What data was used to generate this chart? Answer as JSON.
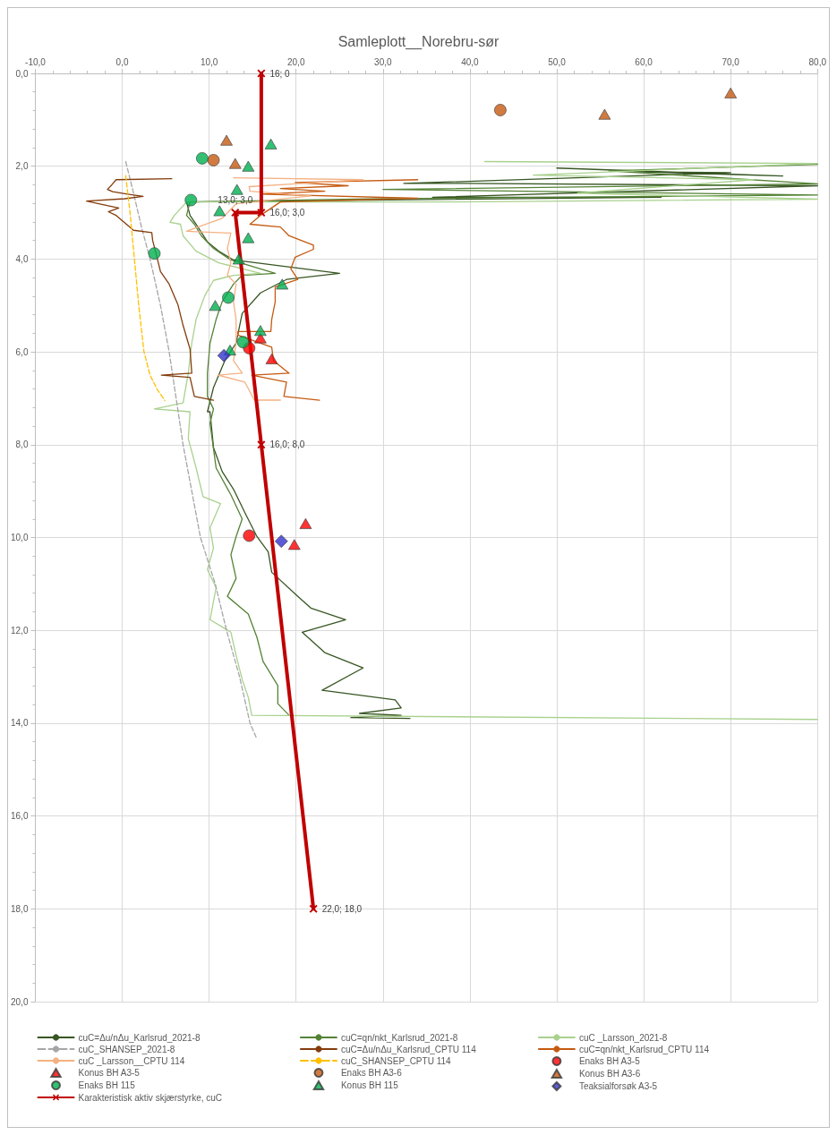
{
  "chart_data": {
    "type": "line",
    "title": "Samleplott__Norebru-sør",
    "xlim": [
      -10,
      80
    ],
    "xticks": [
      {
        "value": -10,
        "label": "-10,0"
      },
      {
        "value": 0,
        "label": "0,0"
      },
      {
        "value": 10,
        "label": "10,0"
      },
      {
        "value": 20,
        "label": "20,0"
      },
      {
        "value": 30,
        "label": "30,0"
      },
      {
        "value": 40,
        "label": "40,0"
      },
      {
        "value": 50,
        "label": "50,0"
      },
      {
        "value": 60,
        "label": "60,0"
      },
      {
        "value": 70,
        "label": "70,0"
      },
      {
        "value": 80,
        "label": "80,0"
      }
    ],
    "ylim": [
      20,
      0
    ],
    "yticks": [
      {
        "value": 0,
        "label": "0,0"
      },
      {
        "value": 2,
        "label": "2,0"
      },
      {
        "value": 4,
        "label": "4,0"
      },
      {
        "value": 6,
        "label": "6,0"
      },
      {
        "value": 8,
        "label": "8,0"
      },
      {
        "value": 10,
        "label": "10,0"
      },
      {
        "value": 12,
        "label": "12,0"
      },
      {
        "value": 14,
        "label": "14,0"
      },
      {
        "value": 16,
        "label": "16,0"
      },
      {
        "value": 18,
        "label": "18,0"
      },
      {
        "value": 20,
        "label": "20,0"
      }
    ],
    "grid": true,
    "legend": "bottom",
    "series": [
      {
        "name": "cuC=Δu/nΔu_Karlsrud_2021-8",
        "color": "#375623",
        "type": "line",
        "marker": "none",
        "line_style": "solid",
        "x": [
          50.0,
          76.0,
          59.0,
          70.0,
          32.4,
          39.4,
          80.0,
          35.7,
          62.0,
          7.4,
          7.8,
          8.5,
          9.8,
          11.1,
          12.8,
          25.0,
          18.9,
          15.9,
          13.8,
          13.1,
          11.8,
          10.5,
          9.8,
          10.1,
          10.5,
          11.5,
          12.8,
          14.1,
          15.5,
          16.8,
          17.2,
          20.2,
          21.7,
          25.7,
          20.7,
          23.3,
          27.7,
          23.0,
          31.4,
          32.1,
          27.3,
          32.1,
          26.3,
          33.1
        ],
        "values": [
          2.04,
          2.21,
          2.12,
          2.14,
          2.37,
          2.37,
          2.42,
          2.67,
          2.67,
          2.77,
          3.06,
          3.25,
          3.63,
          3.83,
          4.02,
          4.31,
          4.44,
          4.73,
          5.17,
          5.81,
          6.19,
          6.77,
          7.29,
          7.29,
          8.06,
          8.58,
          8.96,
          9.46,
          9.98,
          10.31,
          10.75,
          11.27,
          11.52,
          11.77,
          12.04,
          12.48,
          12.81,
          13.29,
          13.5,
          13.67,
          13.79,
          13.83,
          13.88,
          13.9
        ]
      },
      {
        "name": "cuC=qn/nkt_Karlsrud_2021-8",
        "color": "#548235",
        "type": "line",
        "marker": "none",
        "line_style": "solid",
        "x": [
          80.0,
          56.0,
          80.0,
          30.0,
          80.0,
          30.0,
          7.8,
          7.4,
          8.3,
          9.1,
          10.5,
          12.5,
          17.6,
          13.8,
          12.8,
          11.5,
          10.8,
          10.1,
          9.8,
          9.8,
          10.5,
          10.1,
          10.8,
          12.5,
          13.8,
          13.1,
          12.5,
          13.1,
          12.1,
          14.5,
          15.5,
          16.2,
          17.9,
          17.9,
          19.2
        ],
        "values": [
          1.96,
          2.1,
          2.38,
          2.5,
          2.62,
          2.7,
          2.77,
          3.06,
          3.25,
          3.5,
          3.77,
          4.02,
          4.31,
          4.35,
          4.54,
          4.92,
          5.3,
          5.81,
          6.46,
          6.96,
          7.23,
          7.54,
          8.5,
          9.08,
          9.6,
          9.98,
          10.37,
          10.88,
          11.27,
          11.65,
          12.15,
          12.67,
          13.19,
          13.58,
          13.83
        ]
      },
      {
        "name": "cuC _Larsson_2021-8",
        "color": "#a9d18e",
        "type": "line",
        "marker": "none",
        "line_style": "solid",
        "x": [
          41.7,
          80.0,
          47.3,
          72.7,
          52.4,
          80.0,
          37.2,
          7.4,
          6.0,
          5.5,
          6.7,
          7.0,
          8.5,
          11.1,
          15.9,
          12.8,
          10.5,
          9.5,
          8.5,
          8.0,
          7.6,
          7.0,
          3.7,
          7.8,
          7.6,
          8.5,
          9.3,
          11.3,
          10.1,
          10.5,
          9.8,
          10.8,
          10.1,
          12.5,
          13.1,
          13.8,
          14.5,
          14.9,
          80.0
        ],
        "values": [
          1.9,
          1.94,
          2.19,
          2.29,
          2.58,
          2.71,
          2.77,
          2.77,
          3.06,
          3.21,
          3.25,
          3.5,
          3.83,
          4.08,
          4.31,
          4.35,
          4.46,
          4.79,
          5.3,
          5.81,
          6.46,
          7.1,
          7.23,
          7.29,
          7.87,
          8.5,
          9.12,
          9.27,
          9.79,
          10.23,
          10.69,
          11.08,
          11.77,
          12.04,
          12.54,
          13.06,
          13.44,
          13.83,
          13.92
        ]
      },
      {
        "name": "cuC_SHANSEP_2021-8",
        "color": "#a6a6a6",
        "type": "line",
        "marker": "none",
        "line_style": "dashed",
        "x": [
          0.4,
          1.2,
          2.2,
          3.2,
          4.4,
          5.4,
          6.2,
          7.0,
          8.0,
          9.0,
          10.7,
          12.0,
          13.5,
          14.7,
          15.4
        ],
        "values": [
          1.9,
          2.5,
          3.3,
          4.0,
          5.0,
          6.0,
          7.0,
          8.0,
          9.0,
          10.0,
          11.0,
          12.0,
          13.0,
          14.0,
          14.3
        ]
      },
      {
        "name": "cuC=Δu/nΔu_Karlsrud_CPTU 114",
        "color": "#843c0c",
        "type": "line",
        "marker": "none",
        "line_style": "solid",
        "x": [
          5.7,
          -0.7,
          -1.2,
          -1.7,
          -1.1,
          0.6,
          2.4,
          0.3,
          -4.1,
          -2.7,
          -0.4,
          -1.6,
          -0.7,
          1.3,
          3.4,
          3.5,
          3.9,
          4.4,
          5.4,
          6.4,
          7.0,
          7.8,
          8.0,
          4.5,
          7.8,
          8.3,
          10.5
        ],
        "values": [
          2.27,
          2.29,
          2.4,
          2.5,
          2.55,
          2.6,
          2.65,
          2.7,
          2.75,
          2.81,
          2.9,
          2.98,
          3.06,
          3.38,
          3.43,
          3.6,
          3.89,
          4.27,
          4.54,
          4.98,
          5.43,
          5.94,
          6.46,
          6.5,
          6.55,
          6.96,
          7.04
        ]
      },
      {
        "name": "cuC=qn/nkt_Karlsrud_CPTU 114",
        "color": "#c55a11",
        "type": "line",
        "marker": "none",
        "line_style": "solid",
        "x": [
          34.0,
          19.9,
          26.0,
          18.2,
          23.3,
          15.9,
          34.0,
          18.2,
          15.9,
          14.7,
          18.2,
          19.2,
          22.0,
          22.0,
          19.9,
          19.4,
          20.2,
          17.6,
          17.6,
          17.2,
          17.1,
          13.3,
          13.3,
          17.2,
          17.4,
          19.2,
          14.9,
          18.9,
          18.6,
          22.7
        ],
        "values": [
          2.29,
          2.35,
          2.42,
          2.48,
          2.54,
          2.6,
          2.69,
          2.77,
          3.06,
          3.25,
          3.31,
          3.5,
          3.7,
          3.79,
          3.96,
          4.21,
          4.44,
          4.6,
          4.92,
          5.3,
          5.56,
          5.56,
          5.64,
          5.9,
          6.19,
          6.46,
          6.5,
          6.65,
          6.96,
          7.04
        ]
      },
      {
        "name": "cuC _Larsson__CPTU 114",
        "color": "#f4b183",
        "type": "line",
        "marker": "none",
        "line_style": "solid",
        "x": [
          12.8,
          27.7,
          19.9,
          14.6,
          14.7,
          21.7,
          13.1,
          11.5,
          7.4,
          12.5,
          12.1,
          12.5,
          12.1,
          13.1,
          12.8,
          13.1,
          13.1,
          12.8,
          13.8,
          11.0,
          14.1,
          15.2,
          18.2
        ],
        "values": [
          2.25,
          2.29,
          2.38,
          2.44,
          2.54,
          2.64,
          2.81,
          3.12,
          3.4,
          3.44,
          3.77,
          4.08,
          4.35,
          4.54,
          4.92,
          5.3,
          5.81,
          6.19,
          6.46,
          6.5,
          6.65,
          7.04,
          7.04
        ]
      },
      {
        "name": "cuC_SHANSEP_CPTU 114",
        "color": "#ffc000",
        "type": "line",
        "marker": "none",
        "line_style": "dashed",
        "x": [
          0.4,
          0.9,
          1.4,
          1.9,
          2.5,
          3.2,
          4.0,
          4.9
        ],
        "values": [
          2.2,
          3.0,
          4.0,
          5.0,
          6.0,
          6.5,
          6.8,
          7.05
        ]
      },
      {
        "name": "Enaks BH A3-5",
        "color": "#ff0000",
        "type": "scatter",
        "marker": "circle",
        "x": [
          14.6,
          14.6
        ],
        "values": [
          5.92,
          9.96
        ]
      },
      {
        "name": "Konus BH A3-5",
        "color": "#ff0000",
        "type": "scatter",
        "marker": "triangle",
        "x": [
          15.9,
          17.2,
          21.1,
          19.8
        ],
        "values": [
          5.7,
          6.15,
          9.7,
          10.15
        ]
      },
      {
        "name": "Enaks BH A3-6",
        "color": "#c55a11",
        "type": "scatter",
        "marker": "circle",
        "x": [
          43.5,
          10.5
        ],
        "values": [
          0.79,
          1.87
        ]
      },
      {
        "name": "Konus BH A3-6",
        "color": "#c55a11",
        "type": "scatter",
        "marker": "triangle",
        "x": [
          70.0,
          55.5,
          12.0,
          13.0
        ],
        "values": [
          0.42,
          0.88,
          1.44,
          1.94
        ]
      },
      {
        "name": "Enaks BH 115",
        "color": "#00b050",
        "type": "scatter",
        "marker": "circle",
        "x": [
          9.2,
          7.9,
          3.7,
          12.2,
          13.9
        ],
        "values": [
          1.83,
          2.73,
          3.88,
          4.83,
          5.79
        ]
      },
      {
        "name": "Konus BH 115",
        "color": "#00b050",
        "type": "scatter",
        "marker": "triangle",
        "x": [
          17.1,
          14.5,
          13.2,
          11.2,
          14.5,
          13.4,
          18.4,
          10.7,
          15.9,
          12.4
        ],
        "values": [
          1.52,
          2.0,
          2.5,
          2.96,
          3.54,
          4.0,
          4.54,
          5.0,
          5.54,
          5.96
        ]
      },
      {
        "name": "Teaksialforsøk A3-5",
        "color": "#3333cc",
        "type": "scatter",
        "marker": "diamond",
        "x": [
          11.7,
          18.3
        ],
        "values": [
          6.08,
          10.08
        ]
      },
      {
        "name": "Karakteristisk aktiv skjærstyrke, cuC",
        "color": "#c00000",
        "type": "line",
        "marker": "cross",
        "line_style": "solid",
        "x": [
          16,
          16,
          13,
          16,
          22
        ],
        "values": [
          0,
          3,
          3,
          8,
          18
        ],
        "value_labels": [
          "16; 0",
          "16,0; 3,0",
          "13,0; 3,0",
          "16,0; 8,0",
          "22,0; 18,0"
        ]
      }
    ]
  }
}
